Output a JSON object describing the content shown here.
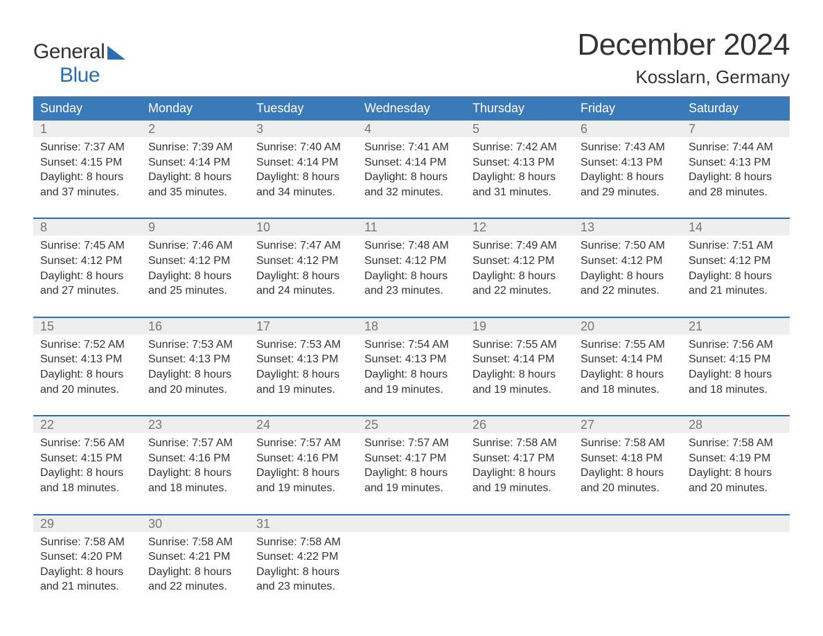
{
  "logo": {
    "general": "General",
    "blue": "Blue"
  },
  "title": "December 2024",
  "location": "Kosslarn, Germany",
  "colors": {
    "header_bg": "#3a7ab8",
    "header_text": "#ffffff",
    "topbar": "#2a6db0",
    "daynum_bg": "#eeeeee",
    "daynum_text": "#777777",
    "body_text": "#333333",
    "background": "#ffffff",
    "logo_blue": "#2a6db0"
  },
  "typography": {
    "title_fontsize": 44,
    "location_fontsize": 26,
    "dow_fontsize": 18,
    "daynum_fontsize": 18,
    "cell_fontsize": 16,
    "logo_fontsize": 30
  },
  "days_of_week": [
    "Sunday",
    "Monday",
    "Tuesday",
    "Wednesday",
    "Thursday",
    "Friday",
    "Saturday"
  ],
  "weeks": [
    [
      {
        "day": "1",
        "sunrise": "Sunrise: 7:37 AM",
        "sunset": "Sunset: 4:15 PM",
        "d1": "Daylight: 8 hours",
        "d2": "and 37 minutes."
      },
      {
        "day": "2",
        "sunrise": "Sunrise: 7:39 AM",
        "sunset": "Sunset: 4:14 PM",
        "d1": "Daylight: 8 hours",
        "d2": "and 35 minutes."
      },
      {
        "day": "3",
        "sunrise": "Sunrise: 7:40 AM",
        "sunset": "Sunset: 4:14 PM",
        "d1": "Daylight: 8 hours",
        "d2": "and 34 minutes."
      },
      {
        "day": "4",
        "sunrise": "Sunrise: 7:41 AM",
        "sunset": "Sunset: 4:14 PM",
        "d1": "Daylight: 8 hours",
        "d2": "and 32 minutes."
      },
      {
        "day": "5",
        "sunrise": "Sunrise: 7:42 AM",
        "sunset": "Sunset: 4:13 PM",
        "d1": "Daylight: 8 hours",
        "d2": "and 31 minutes."
      },
      {
        "day": "6",
        "sunrise": "Sunrise: 7:43 AM",
        "sunset": "Sunset: 4:13 PM",
        "d1": "Daylight: 8 hours",
        "d2": "and 29 minutes."
      },
      {
        "day": "7",
        "sunrise": "Sunrise: 7:44 AM",
        "sunset": "Sunset: 4:13 PM",
        "d1": "Daylight: 8 hours",
        "d2": "and 28 minutes."
      }
    ],
    [
      {
        "day": "8",
        "sunrise": "Sunrise: 7:45 AM",
        "sunset": "Sunset: 4:12 PM",
        "d1": "Daylight: 8 hours",
        "d2": "and 27 minutes."
      },
      {
        "day": "9",
        "sunrise": "Sunrise: 7:46 AM",
        "sunset": "Sunset: 4:12 PM",
        "d1": "Daylight: 8 hours",
        "d2": "and 25 minutes."
      },
      {
        "day": "10",
        "sunrise": "Sunrise: 7:47 AM",
        "sunset": "Sunset: 4:12 PM",
        "d1": "Daylight: 8 hours",
        "d2": "and 24 minutes."
      },
      {
        "day": "11",
        "sunrise": "Sunrise: 7:48 AM",
        "sunset": "Sunset: 4:12 PM",
        "d1": "Daylight: 8 hours",
        "d2": "and 23 minutes."
      },
      {
        "day": "12",
        "sunrise": "Sunrise: 7:49 AM",
        "sunset": "Sunset: 4:12 PM",
        "d1": "Daylight: 8 hours",
        "d2": "and 22 minutes."
      },
      {
        "day": "13",
        "sunrise": "Sunrise: 7:50 AM",
        "sunset": "Sunset: 4:12 PM",
        "d1": "Daylight: 8 hours",
        "d2": "and 22 minutes."
      },
      {
        "day": "14",
        "sunrise": "Sunrise: 7:51 AM",
        "sunset": "Sunset: 4:12 PM",
        "d1": "Daylight: 8 hours",
        "d2": "and 21 minutes."
      }
    ],
    [
      {
        "day": "15",
        "sunrise": "Sunrise: 7:52 AM",
        "sunset": "Sunset: 4:13 PM",
        "d1": "Daylight: 8 hours",
        "d2": "and 20 minutes."
      },
      {
        "day": "16",
        "sunrise": "Sunrise: 7:53 AM",
        "sunset": "Sunset: 4:13 PM",
        "d1": "Daylight: 8 hours",
        "d2": "and 20 minutes."
      },
      {
        "day": "17",
        "sunrise": "Sunrise: 7:53 AM",
        "sunset": "Sunset: 4:13 PM",
        "d1": "Daylight: 8 hours",
        "d2": "and 19 minutes."
      },
      {
        "day": "18",
        "sunrise": "Sunrise: 7:54 AM",
        "sunset": "Sunset: 4:13 PM",
        "d1": "Daylight: 8 hours",
        "d2": "and 19 minutes."
      },
      {
        "day": "19",
        "sunrise": "Sunrise: 7:55 AM",
        "sunset": "Sunset: 4:14 PM",
        "d1": "Daylight: 8 hours",
        "d2": "and 19 minutes."
      },
      {
        "day": "20",
        "sunrise": "Sunrise: 7:55 AM",
        "sunset": "Sunset: 4:14 PM",
        "d1": "Daylight: 8 hours",
        "d2": "and 18 minutes."
      },
      {
        "day": "21",
        "sunrise": "Sunrise: 7:56 AM",
        "sunset": "Sunset: 4:15 PM",
        "d1": "Daylight: 8 hours",
        "d2": "and 18 minutes."
      }
    ],
    [
      {
        "day": "22",
        "sunrise": "Sunrise: 7:56 AM",
        "sunset": "Sunset: 4:15 PM",
        "d1": "Daylight: 8 hours",
        "d2": "and 18 minutes."
      },
      {
        "day": "23",
        "sunrise": "Sunrise: 7:57 AM",
        "sunset": "Sunset: 4:16 PM",
        "d1": "Daylight: 8 hours",
        "d2": "and 18 minutes."
      },
      {
        "day": "24",
        "sunrise": "Sunrise: 7:57 AM",
        "sunset": "Sunset: 4:16 PM",
        "d1": "Daylight: 8 hours",
        "d2": "and 19 minutes."
      },
      {
        "day": "25",
        "sunrise": "Sunrise: 7:57 AM",
        "sunset": "Sunset: 4:17 PM",
        "d1": "Daylight: 8 hours",
        "d2": "and 19 minutes."
      },
      {
        "day": "26",
        "sunrise": "Sunrise: 7:58 AM",
        "sunset": "Sunset: 4:17 PM",
        "d1": "Daylight: 8 hours",
        "d2": "and 19 minutes."
      },
      {
        "day": "27",
        "sunrise": "Sunrise: 7:58 AM",
        "sunset": "Sunset: 4:18 PM",
        "d1": "Daylight: 8 hours",
        "d2": "and 20 minutes."
      },
      {
        "day": "28",
        "sunrise": "Sunrise: 7:58 AM",
        "sunset": "Sunset: 4:19 PM",
        "d1": "Daylight: 8 hours",
        "d2": "and 20 minutes."
      }
    ],
    [
      {
        "day": "29",
        "sunrise": "Sunrise: 7:58 AM",
        "sunset": "Sunset: 4:20 PM",
        "d1": "Daylight: 8 hours",
        "d2": "and 21 minutes."
      },
      {
        "day": "30",
        "sunrise": "Sunrise: 7:58 AM",
        "sunset": "Sunset: 4:21 PM",
        "d1": "Daylight: 8 hours",
        "d2": "and 22 minutes."
      },
      {
        "day": "31",
        "sunrise": "Sunrise: 7:58 AM",
        "sunset": "Sunset: 4:22 PM",
        "d1": "Daylight: 8 hours",
        "d2": "and 23 minutes."
      },
      null,
      null,
      null,
      null
    ]
  ]
}
